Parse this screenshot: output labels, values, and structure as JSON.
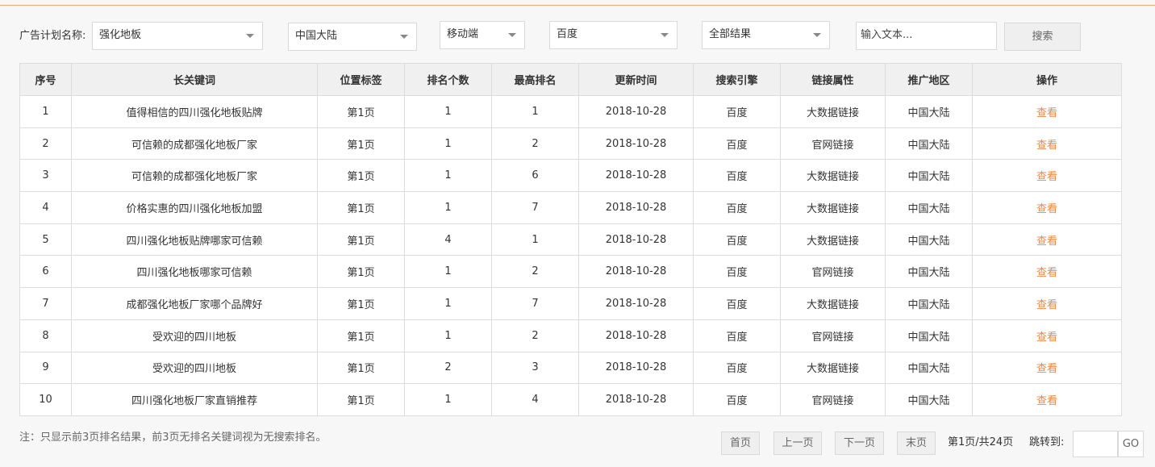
{
  "filters": {
    "plan_label": "广告计划名称:",
    "plan": "强化地板",
    "region": "中国大陆",
    "device": "移动端",
    "engine": "百度",
    "result": "全部结果",
    "input_placeholder": "输入文本...",
    "search_button": "搜索"
  },
  "table": {
    "headers": [
      "序号",
      "长关键词",
      "位置标签",
      "排名个数",
      "最高排名",
      "更新时间",
      "搜索引擎",
      "链接属性",
      "推广地区",
      "操作"
    ],
    "rows": [
      [
        "1",
        "值得相信的四川强化地板贴牌",
        "第1页",
        "1",
        "1",
        "2018-10-28",
        "百度",
        "大数据链接",
        "中国大陆",
        "查看"
      ],
      [
        "2",
        "可信赖的成都强化地板厂家",
        "第1页",
        "1",
        "2",
        "2018-10-28",
        "百度",
        "官网链接",
        "中国大陆",
        "查看"
      ],
      [
        "3",
        "可信赖的成都强化地板厂家",
        "第1页",
        "1",
        "6",
        "2018-10-28",
        "百度",
        "大数据链接",
        "中国大陆",
        "查看"
      ],
      [
        "4",
        "价格实惠的四川强化地板加盟",
        "第1页",
        "1",
        "7",
        "2018-10-28",
        "百度",
        "大数据链接",
        "中国大陆",
        "查看"
      ],
      [
        "5",
        "四川强化地板贴牌哪家可信赖",
        "第1页",
        "4",
        "1",
        "2018-10-28",
        "百度",
        "大数据链接",
        "中国大陆",
        "查看"
      ],
      [
        "6",
        "四川强化地板哪家可信赖",
        "第1页",
        "1",
        "2",
        "2018-10-28",
        "百度",
        "官网链接",
        "中国大陆",
        "查看"
      ],
      [
        "7",
        "成都强化地板厂家哪个品牌好",
        "第1页",
        "1",
        "7",
        "2018-10-28",
        "百度",
        "大数据链接",
        "中国大陆",
        "查看"
      ],
      [
        "8",
        "受欢迎的四川地板",
        "第1页",
        "1",
        "2",
        "2018-10-28",
        "百度",
        "官网链接",
        "中国大陆",
        "查看"
      ],
      [
        "9",
        "受欢迎的四川地板",
        "第1页",
        "2",
        "3",
        "2018-10-28",
        "百度",
        "大数据链接",
        "中国大陆",
        "查看"
      ],
      [
        "10",
        "四川强化地板厂家直销推荐",
        "第1页",
        "1",
        "4",
        "2018-10-28",
        "百度",
        "官网链接",
        "中国大陆",
        "查看"
      ]
    ]
  },
  "footer": {
    "note": "注：只显示前3页排名结果，前3页无排名关键词视为无搜索排名。",
    "pagination": {
      "first": "首页",
      "prev": "上一页",
      "next": "下一页",
      "last": "末页",
      "info": "第1页/共24页",
      "jump_label": "跳转到:",
      "go": "GO"
    }
  }
}
